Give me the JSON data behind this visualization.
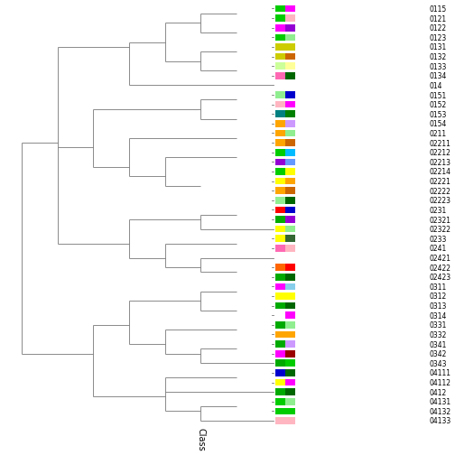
{
  "labels": [
    "0115",
    "0121",
    "0122",
    "0123",
    "0131",
    "0132",
    "0133",
    "0134",
    "014",
    "0151",
    "0152",
    "0153",
    "0154",
    "0211",
    "02211",
    "02212",
    "02213",
    "02214",
    "02221",
    "02222",
    "02223",
    "0231",
    "02321",
    "02322",
    "0233",
    "0241",
    "02421",
    "02422",
    "02423",
    "0311",
    "0312",
    "0313",
    "0314",
    "0331",
    "0332",
    "0341",
    "0342",
    "0343",
    "04111",
    "04112",
    "0412",
    "04131",
    "04132",
    "04133"
  ],
  "box1_colors": [
    "#00cc00",
    "#00cc00",
    "#ff00ff",
    "#00cc00",
    "#cccc00",
    "#cccc00",
    "#ccff99",
    "#ff69b4",
    null,
    "#90ee90",
    "#ffb6c1",
    "#008080",
    "#ffa500",
    "#ffa500",
    "#ffa500",
    "#00cc00",
    "#9400d3",
    "#00cc00",
    "#ffff00",
    "#ffa500",
    "#90ee90",
    "#ff0000",
    "#00aa00",
    "#ffff00",
    "#ffff00",
    "#ff69b4",
    null,
    "#ff6600",
    "#00aa00",
    "#ff00ff",
    "#ffff00",
    "#00aa00",
    "#ffffff",
    "#00aa00",
    "#ffa500",
    "#00aa00",
    "#ff00ff",
    "#00aa00",
    "#0000cc",
    "#ffff00",
    "#00aa00",
    "#00cc00",
    "#00cc00",
    "#ffb6c1"
  ],
  "box2_colors": [
    "#ff00ff",
    "#ffb6c1",
    "#9400d3",
    "#90ee90",
    "#cccc00",
    "#cc6600",
    "#ffff99",
    "#006600",
    null,
    "#0000cc",
    "#ff00ff",
    "#008000",
    "#cc99ff",
    "#90ee90",
    "#cc6600",
    "#00bbff",
    "#6699ff",
    "#ffff00",
    "#ffa500",
    "#cc6600",
    "#006600",
    "#0000cc",
    "#9400d3",
    "#90ee90",
    "#336633",
    "#ffb6c1",
    null,
    "#ff0000",
    "#006600",
    "#87ceeb",
    "#ffff00",
    "#006600",
    "#ff00ff",
    "#90ee90",
    "#ffa500",
    "#cc99ff",
    "#990000",
    "#00cc00",
    "#006600",
    "#ff00ff",
    "#006600",
    "#90ee90",
    "#00cc00",
    "#ffb6c1"
  ],
  "figsize": [
    5.04,
    5.04
  ],
  "dpi": 100,
  "xlabel": "Class",
  "clusters": [
    {
      "members": [
        0,
        1
      ],
      "x": 1
    },
    {
      "members": [
        2,
        3
      ],
      "x": 1
    },
    {
      "members": [
        0,
        1,
        2,
        3
      ],
      "x": 2
    },
    {
      "members": [
        4,
        5
      ],
      "x": 1
    },
    {
      "members": [
        6,
        7
      ],
      "x": 1
    },
    {
      "members": [
        4,
        5,
        6,
        7
      ],
      "x": 2
    },
    {
      "members": [
        0,
        1,
        2,
        3,
        4,
        5,
        6,
        7
      ],
      "x": 3
    },
    {
      "members": [
        0,
        1,
        2,
        3,
        4,
        5,
        6,
        7,
        8
      ],
      "x": 4
    },
    {
      "members": [
        9,
        10
      ],
      "x": 1
    },
    {
      "members": [
        11,
        12
      ],
      "x": 1
    },
    {
      "members": [
        9,
        10,
        11,
        12
      ],
      "x": 2
    },
    {
      "members": [
        13,
        14
      ],
      "x": 1
    },
    {
      "members": [
        15,
        16
      ],
      "x": 1
    },
    {
      "members": [
        17,
        18,
        19,
        20
      ],
      "x": 2
    },
    {
      "members": [
        15,
        16,
        17,
        18,
        19,
        20
      ],
      "x": 3
    },
    {
      "members": [
        13,
        14,
        15,
        16,
        17,
        18,
        19,
        20
      ],
      "x": 4
    },
    {
      "members": [
        9,
        10,
        11,
        12,
        13,
        14,
        15,
        16,
        17,
        18,
        19,
        20
      ],
      "x": 5
    },
    {
      "members": [
        21,
        22
      ],
      "x": 1
    },
    {
      "members": [
        21,
        22,
        23
      ],
      "x": 2
    },
    {
      "members": [
        24,
        25
      ],
      "x": 1
    },
    {
      "members": [
        27,
        28
      ],
      "x": 1
    },
    {
      "members": [
        26,
        27,
        28
      ],
      "x": 2
    },
    {
      "members": [
        24,
        25,
        26,
        27,
        28
      ],
      "x": 3
    },
    {
      "members": [
        21,
        22,
        23,
        24,
        25,
        26,
        27,
        28
      ],
      "x": 4
    },
    {
      "members": [
        0,
        1,
        2,
        3,
        4,
        5,
        6,
        7,
        8,
        9,
        10,
        11,
        12,
        13,
        14,
        15,
        16,
        17,
        18,
        19,
        20,
        21,
        22,
        23,
        24,
        25,
        26,
        27,
        28
      ],
      "x": 6
    },
    {
      "members": [
        29,
        30
      ],
      "x": 1
    },
    {
      "members": [
        31,
        32
      ],
      "x": 1
    },
    {
      "members": [
        29,
        30,
        31,
        32
      ],
      "x": 2
    },
    {
      "members": [
        33,
        34
      ],
      "x": 1
    },
    {
      "members": [
        35,
        36
      ],
      "x": 1
    },
    {
      "members": [
        35,
        36,
        37
      ],
      "x": 2
    },
    {
      "members": [
        33,
        34,
        35,
        36,
        37
      ],
      "x": 3
    },
    {
      "members": [
        29,
        30,
        31,
        32,
        33,
        34,
        35,
        36,
        37
      ],
      "x": 4
    },
    {
      "members": [
        38,
        39
      ],
      "x": 1
    },
    {
      "members": [
        41,
        42
      ],
      "x": 1
    },
    {
      "members": [
        41,
        42,
        43
      ],
      "x": 2
    },
    {
      "members": [
        38,
        39,
        40,
        41,
        42,
        43
      ],
      "x": 3
    },
    {
      "members": [
        29,
        30,
        31,
        32,
        33,
        34,
        35,
        36,
        37,
        38,
        39,
        40,
        41,
        42,
        43
      ],
      "x": 5
    },
    {
      "members": [
        0,
        1,
        2,
        3,
        4,
        5,
        6,
        7,
        8,
        9,
        10,
        11,
        12,
        13,
        14,
        15,
        16,
        17,
        18,
        19,
        20,
        21,
        22,
        23,
        24,
        25,
        26,
        27,
        28,
        29,
        30,
        31,
        32,
        33,
        34,
        35,
        36,
        37,
        38,
        39,
        40,
        41,
        42,
        43
      ],
      "x": 7
    }
  ]
}
